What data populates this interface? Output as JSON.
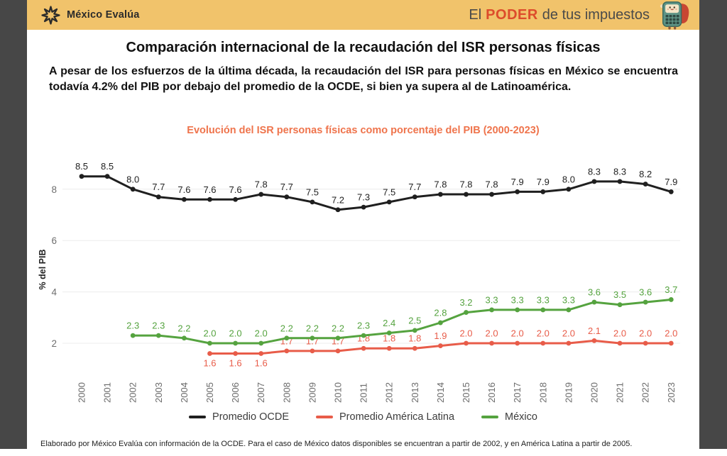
{
  "header": {
    "logo_text": "México Evalúa",
    "tagline_prefix": "El",
    "tagline_highlight": "PODER",
    "tagline_suffix": "de tus impuestos",
    "bar_color": "#F1C36B",
    "highlight_color": "#DD4C2B"
  },
  "title": "Comparación internacional de la recaudación del ISR personas físicas",
  "subtitle": "A pesar de los esfuerzos de la última década, la recaudación del ISR para personas físicas en México se encuentra todavía 4.2% del PIB por debajo del promedio de la OCDE, si bien ya supera al de Latinoamérica.",
  "chart_data": {
    "type": "line",
    "title": "Evolución del ISR personas físicas como porcentaje del PIB (2000-2023)",
    "title_color": "#EF744C",
    "xlabel": "",
    "ylabel": "% del PIB",
    "years": [
      2000,
      2001,
      2002,
      2003,
      2004,
      2005,
      2006,
      2007,
      2008,
      2009,
      2010,
      2011,
      2012,
      2013,
      2014,
      2015,
      2016,
      2017,
      2018,
      2019,
      2020,
      2021,
      2022,
      2023
    ],
    "yticks": [
      2,
      4,
      6,
      8
    ],
    "ylim": [
      1.2,
      9.0
    ],
    "grid": true,
    "legend_position": "bottom",
    "series": [
      {
        "name": "Promedio OCDE",
        "color": "#1F1F1F",
        "start_year": 2000,
        "values": [
          8.5,
          8.5,
          8.0,
          7.7,
          7.6,
          7.6,
          7.6,
          7.8,
          7.7,
          7.5,
          7.2,
          7.3,
          7.5,
          7.7,
          7.8,
          7.8,
          7.8,
          7.9,
          7.9,
          8.0,
          8.3,
          8.3,
          8.2,
          7.9
        ]
      },
      {
        "name": "Promedio América Latina",
        "color": "#E85C49",
        "start_year": 2005,
        "labels_below_years": [
          2005,
          2006,
          2007
        ],
        "values": [
          1.6,
          1.6,
          1.6,
          1.7,
          1.7,
          1.7,
          1.8,
          1.8,
          1.8,
          1.9,
          2.0,
          2.0,
          2.0,
          2.0,
          2.0,
          2.1,
          2.0,
          2.0,
          2.0
        ]
      },
      {
        "name": "México",
        "color": "#55A33F",
        "start_year": 2002,
        "labels_below_years": [],
        "values": [
          2.3,
          2.3,
          2.2,
          2.0,
          2.0,
          2.0,
          2.2,
          2.2,
          2.2,
          2.3,
          2.4,
          2.5,
          2.8,
          3.2,
          3.3,
          3.3,
          3.3,
          3.3,
          3.6,
          3.5,
          3.6,
          3.7
        ]
      }
    ]
  },
  "footer": "Elaborado por México Evalúa con información de la OCDE. Para el caso de México datos disponibles se encuentran a partir de 2002, y en América Latina a partir de 2005."
}
